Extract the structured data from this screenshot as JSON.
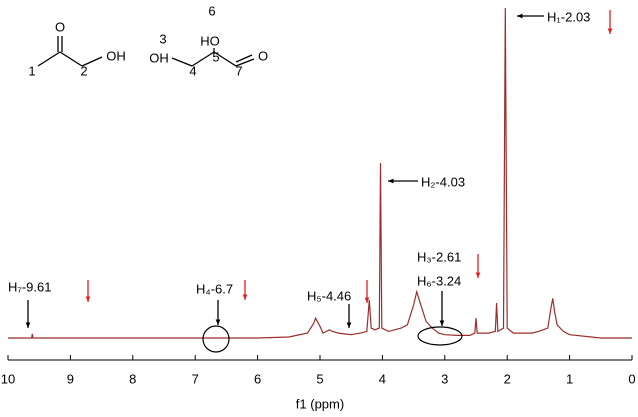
{
  "chart_data": {
    "type": "line",
    "x_label": "f1  (ppm)",
    "xlim": [
      10,
      0
    ],
    "xticks": [
      10,
      9,
      8,
      7,
      6,
      5,
      4,
      3,
      2,
      1,
      0
    ],
    "ylim": [
      0,
      100
    ],
    "series": [
      {
        "color": "#9b2d2d",
        "x": [
          10,
          9.7,
          9.62,
          9.61,
          9.6,
          8,
          6,
          5.5,
          5.2,
          5.1,
          5.07,
          5.0,
          4.95,
          4.85,
          4.8,
          4.7,
          4.6,
          4.5,
          4.35,
          4.25,
          4.21,
          4.18,
          4.12,
          4.05,
          4.03,
          4.01,
          3.9,
          3.7,
          3.6,
          3.5,
          3.45,
          3.4,
          3.3,
          3.2,
          3.1,
          3.0,
          2.8,
          2.6,
          2.52,
          2.5,
          2.48,
          2.3,
          2.19,
          2.17,
          2.15,
          2.06,
          2.03,
          2.0,
          1.9,
          1.6,
          1.5,
          1.35,
          1.3,
          1.27,
          1.24,
          1.2,
          1.1,
          1.0,
          0.5,
          0
        ],
        "values": [
          0,
          0,
          0,
          1.2,
          0,
          0,
          0,
          0.3,
          1.5,
          4.5,
          6,
          3.5,
          1.5,
          2.5,
          2,
          1.5,
          1.2,
          1,
          1.5,
          2,
          11.5,
          3,
          2.5,
          3,
          53,
          3,
          2,
          3,
          4,
          10,
          14,
          11,
          5,
          3,
          1.5,
          1,
          0.8,
          0.8,
          1.5,
          6,
          1.5,
          1.5,
          2,
          10.6,
          2,
          3,
          100,
          3,
          1.5,
          1.5,
          2,
          3,
          9,
          12,
          8,
          4,
          2,
          1,
          0,
          0
        ]
      }
    ],
    "annotations": [
      "H₁-2.03",
      "H₂-4.03",
      "H₃-2.61",
      "H₆-3.24",
      "H₅-4.46",
      "H₄-6.7",
      "H₇-9.61"
    ],
    "structure_labels": [
      "O",
      "1",
      "2",
      "OH",
      "6",
      "HO",
      "3",
      "OH",
      "4",
      "5",
      "7",
      "O"
    ]
  }
}
